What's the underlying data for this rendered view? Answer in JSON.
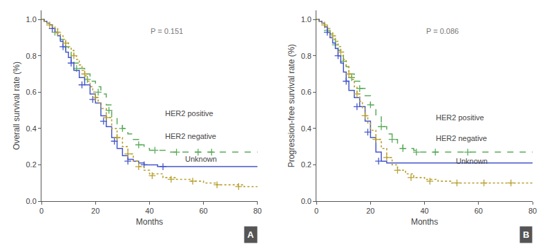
{
  "chart_data": [
    {
      "type": "step",
      "title": "A",
      "annotation": "P = 0.151",
      "xlabel": "Months",
      "ylabel": "Overall survival rate (%)",
      "xlim": [
        0,
        80
      ],
      "ylim": [
        0,
        1.05
      ],
      "xticks": [
        0,
        20,
        40,
        60,
        80
      ],
      "yticks": [
        {
          "value": 0,
          "label": "0.0"
        },
        0.2,
        0.4,
        0.6,
        0.8,
        {
          "value": 1.0,
          "label": "1.0"
        }
      ],
      "grid": false,
      "legend": false,
      "series": [
        {
          "name": "HER2 positive",
          "color": "#5aaa5a",
          "line_style": "dashed",
          "marker": "plus",
          "x": [
            0,
            1,
            2,
            3,
            4,
            5,
            6,
            7,
            8,
            9,
            10,
            11,
            12,
            14,
            16,
            18,
            20,
            22,
            24,
            26,
            28,
            30,
            32,
            34,
            36,
            38,
            40,
            43,
            46,
            50,
            55,
            63,
            80
          ],
          "values": [
            1.0,
            0.99,
            0.98,
            0.97,
            0.95,
            0.93,
            0.91,
            0.89,
            0.87,
            0.85,
            0.82,
            0.79,
            0.76,
            0.73,
            0.7,
            0.66,
            0.63,
            0.59,
            0.53,
            0.46,
            0.42,
            0.4,
            0.37,
            0.34,
            0.31,
            0.29,
            0.28,
            0.28,
            0.27,
            0.27,
            0.27,
            0.27,
            0.27
          ],
          "censor_x": [
            5,
            9,
            13,
            17,
            21,
            25,
            30,
            36,
            42,
            50,
            58,
            63
          ],
          "censor_values": [
            0.93,
            0.85,
            0.73,
            0.67,
            0.6,
            0.5,
            0.4,
            0.31,
            0.28,
            0.27,
            0.27,
            0.27
          ]
        },
        {
          "name": "HER2 negative",
          "color": "#4455cc",
          "line_style": "solid",
          "marker": "plus",
          "x": [
            0,
            1,
            2,
            3,
            4,
            5,
            6,
            7,
            8,
            9,
            10,
            11,
            12,
            14,
            16,
            18,
            20,
            22,
            24,
            26,
            28,
            30,
            32,
            34,
            36,
            38,
            40,
            43,
            46,
            50,
            55,
            80
          ],
          "values": [
            1.0,
            0.99,
            0.98,
            0.97,
            0.95,
            0.93,
            0.91,
            0.88,
            0.85,
            0.82,
            0.79,
            0.76,
            0.72,
            0.68,
            0.64,
            0.59,
            0.54,
            0.47,
            0.41,
            0.35,
            0.29,
            0.25,
            0.23,
            0.22,
            0.21,
            0.2,
            0.2,
            0.19,
            0.19,
            0.19,
            0.19,
            0.19
          ],
          "censor_x": [
            4,
            8,
            11,
            15,
            19,
            23,
            27,
            32,
            38,
            45
          ],
          "censor_values": [
            0.95,
            0.85,
            0.76,
            0.64,
            0.56,
            0.44,
            0.33,
            0.22,
            0.2,
            0.19
          ]
        },
        {
          "name": "Unknown",
          "color": "#b8a030",
          "line_style": "dotted",
          "marker": "plus",
          "x": [
            0,
            1,
            2,
            3,
            4,
            5,
            6,
            7,
            8,
            9,
            10,
            11,
            12,
            13,
            14,
            15,
            16,
            17,
            18,
            19,
            20,
            21,
            22,
            24,
            26,
            28,
            30,
            32,
            34,
            36,
            38,
            40,
            45,
            50,
            55,
            60,
            65,
            70,
            75,
            80
          ],
          "values": [
            1.0,
            0.99,
            0.98,
            0.97,
            0.96,
            0.95,
            0.93,
            0.91,
            0.89,
            0.87,
            0.85,
            0.83,
            0.8,
            0.78,
            0.75,
            0.72,
            0.69,
            0.66,
            0.63,
            0.6,
            0.57,
            0.54,
            0.51,
            0.46,
            0.4,
            0.35,
            0.3,
            0.26,
            0.22,
            0.19,
            0.17,
            0.15,
            0.13,
            0.12,
            0.11,
            0.1,
            0.09,
            0.09,
            0.08,
            0.08
          ],
          "censor_x": [
            3,
            6,
            9,
            12,
            16,
            20,
            24,
            28,
            32,
            36,
            41,
            48,
            56,
            65,
            73
          ],
          "censor_values": [
            0.97,
            0.93,
            0.87,
            0.8,
            0.7,
            0.57,
            0.46,
            0.35,
            0.26,
            0.19,
            0.14,
            0.12,
            0.11,
            0.09,
            0.08
          ]
        }
      ]
    },
    {
      "type": "step",
      "title": "B",
      "annotation": "P = 0.086",
      "xlabel": "Months",
      "ylabel": "Progression-free survival rate (%)",
      "xlim": [
        0,
        80
      ],
      "ylim": [
        0,
        1.05
      ],
      "xticks": [
        0,
        20,
        40,
        60,
        80
      ],
      "yticks": [
        {
          "value": 0,
          "label": "0.0"
        },
        0.2,
        0.4,
        0.6,
        0.8,
        {
          "value": 1.0,
          "label": "1.0"
        }
      ],
      "grid": false,
      "legend": false,
      "series": [
        {
          "name": "HER2 positive",
          "color": "#5aaa5a",
          "line_style": "dashed",
          "marker": "plus",
          "x": [
            0,
            1,
            2,
            3,
            4,
            5,
            6,
            7,
            8,
            9,
            10,
            11,
            12,
            14,
            16,
            18,
            20,
            22,
            24,
            26,
            28,
            30,
            32,
            36,
            38,
            43,
            50,
            63,
            80
          ],
          "values": [
            1.0,
            0.99,
            0.98,
            0.96,
            0.94,
            0.92,
            0.89,
            0.86,
            0.83,
            0.8,
            0.77,
            0.74,
            0.7,
            0.66,
            0.62,
            0.58,
            0.53,
            0.47,
            0.41,
            0.37,
            0.34,
            0.31,
            0.29,
            0.28,
            0.27,
            0.27,
            0.27,
            0.27,
            0.27
          ],
          "censor_x": [
            4,
            7,
            10,
            13,
            16,
            20,
            24,
            28,
            32,
            37,
            44,
            56
          ],
          "censor_values": [
            0.94,
            0.86,
            0.77,
            0.68,
            0.62,
            0.53,
            0.41,
            0.34,
            0.29,
            0.27,
            0.27,
            0.27
          ]
        },
        {
          "name": "HER2 negative",
          "color": "#4455cc",
          "line_style": "solid",
          "marker": "plus",
          "x": [
            0,
            1,
            2,
            3,
            4,
            5,
            6,
            7,
            8,
            9,
            10,
            11,
            12,
            14,
            16,
            18,
            20,
            22,
            24,
            26,
            28,
            30,
            80
          ],
          "values": [
            1.0,
            0.99,
            0.98,
            0.96,
            0.93,
            0.9,
            0.87,
            0.84,
            0.8,
            0.76,
            0.71,
            0.66,
            0.61,
            0.57,
            0.52,
            0.44,
            0.35,
            0.27,
            0.22,
            0.21,
            0.21,
            0.21,
            0.21
          ],
          "censor_x": [
            4,
            8,
            11,
            15,
            19,
            23
          ],
          "censor_values": [
            0.93,
            0.8,
            0.66,
            0.52,
            0.38,
            0.22
          ]
        },
        {
          "name": "Unknown",
          "color": "#b8a030",
          "line_style": "dotted",
          "marker": "plus",
          "x": [
            0,
            1,
            2,
            3,
            4,
            5,
            6,
            7,
            8,
            9,
            10,
            11,
            12,
            13,
            14,
            15,
            16,
            17,
            18,
            19,
            20,
            22,
            24,
            26,
            28,
            30,
            33,
            36,
            40,
            45,
            50,
            55,
            60,
            65,
            70,
            75,
            80
          ],
          "values": [
            1.0,
            0.99,
            0.98,
            0.97,
            0.95,
            0.93,
            0.91,
            0.88,
            0.85,
            0.82,
            0.78,
            0.74,
            0.7,
            0.67,
            0.63,
            0.59,
            0.55,
            0.51,
            0.47,
            0.43,
            0.39,
            0.34,
            0.29,
            0.24,
            0.2,
            0.17,
            0.15,
            0.13,
            0.12,
            0.11,
            0.1,
            0.1,
            0.1,
            0.1,
            0.1,
            0.1,
            0.1
          ],
          "censor_x": [
            3,
            6,
            9,
            12,
            15,
            18,
            22,
            26,
            30,
            35,
            42,
            52,
            62,
            72
          ],
          "censor_values": [
            0.97,
            0.91,
            0.82,
            0.7,
            0.59,
            0.47,
            0.34,
            0.24,
            0.17,
            0.13,
            0.11,
            0.1,
            0.1,
            0.1
          ]
        }
      ]
    }
  ]
}
